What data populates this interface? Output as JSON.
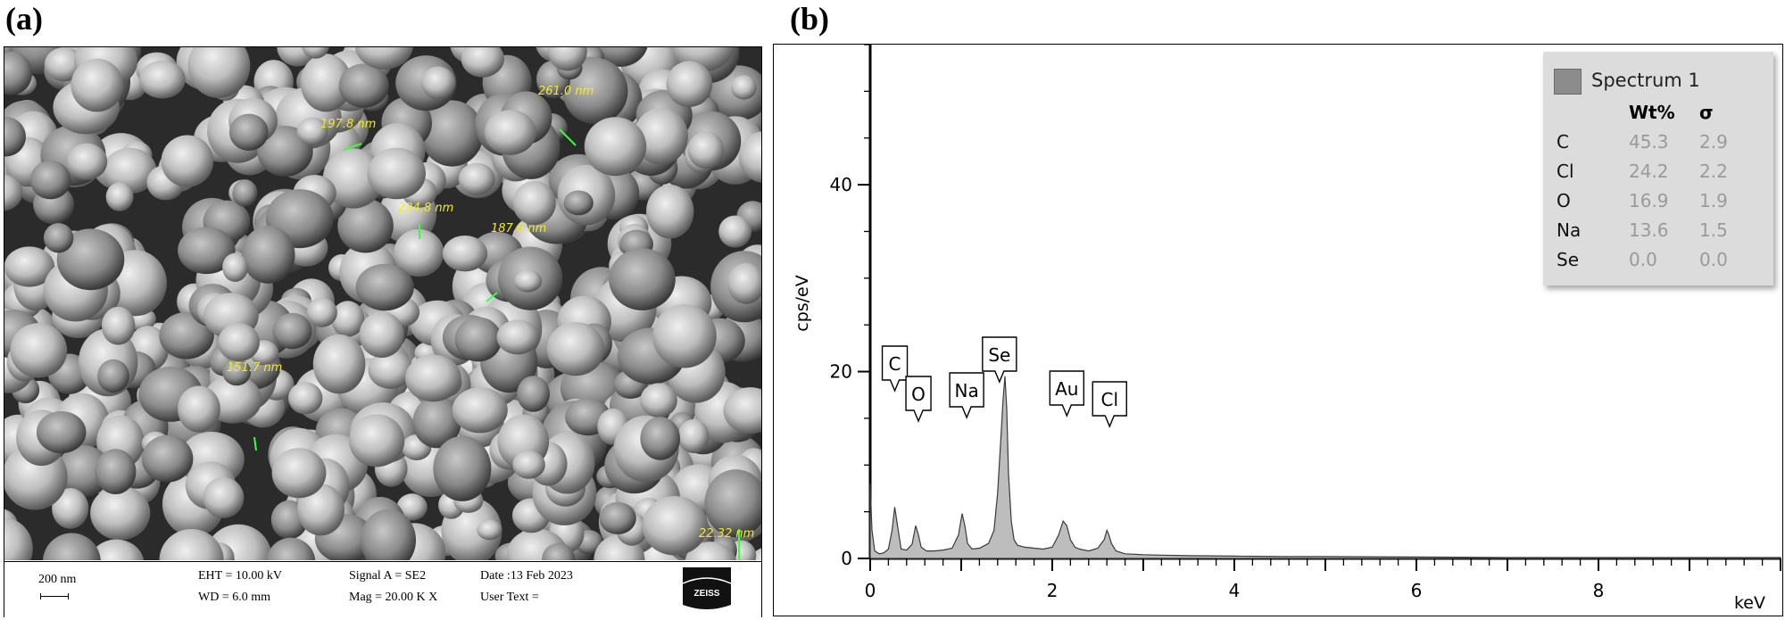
{
  "panels": {
    "a": {
      "label": "(a)"
    },
    "b": {
      "label": "(b)"
    }
  },
  "sem": {
    "measurements": [
      "197.8 nm",
      "261.0 nm",
      "234.8 nm",
      "187.6 nm",
      "151.7 nm",
      "22.32 nm"
    ],
    "info": {
      "scale": "200 nm",
      "eht": "EHT = 10.00 kV",
      "wd": "WD =  6.0 mm",
      "signal": "Signal A = SE2",
      "mag": "Mag =   20.00 K X",
      "date": "Date :13 Feb 2023",
      "user_text": "User Text ="
    },
    "logo": "ZEISS"
  },
  "chart_data": {
    "type": "area",
    "title": "",
    "xlabel": "keV",
    "ylabel": "cps/eV",
    "xlim": [
      0,
      10
    ],
    "ylim": [
      0,
      55
    ],
    "x_ticks": [
      0,
      2,
      4,
      6,
      8
    ],
    "y_ticks": [
      0,
      20,
      40
    ],
    "legend": {
      "position": "top-right",
      "name": "Spectrum 1"
    },
    "series": [
      {
        "name": "Spectrum 1",
        "color": "#bdbdbd",
        "x": [
          0.0,
          0.02,
          0.05,
          0.1,
          0.15,
          0.2,
          0.24,
          0.27,
          0.3,
          0.34,
          0.4,
          0.46,
          0.5,
          0.53,
          0.56,
          0.62,
          0.7,
          0.8,
          0.9,
          0.97,
          1.01,
          1.04,
          1.07,
          1.12,
          1.2,
          1.3,
          1.36,
          1.4,
          1.43,
          1.46,
          1.48,
          1.5,
          1.52,
          1.55,
          1.58,
          1.62,
          1.7,
          1.8,
          1.9,
          2.0,
          2.07,
          2.12,
          2.16,
          2.2,
          2.25,
          2.3,
          2.4,
          2.5,
          2.57,
          2.6,
          2.62,
          2.65,
          2.7,
          2.8,
          3.0,
          3.2,
          3.5,
          4.0,
          4.5,
          5.0,
          6.0,
          7.0,
          8.0,
          9.0,
          10.0
        ],
        "y": [
          8.0,
          3.0,
          0.8,
          0.5,
          0.6,
          1.0,
          3.0,
          5.5,
          3.5,
          1.0,
          0.9,
          1.5,
          3.5,
          2.5,
          1.2,
          0.8,
          0.8,
          0.9,
          1.1,
          2.5,
          4.8,
          3.5,
          1.6,
          1.0,
          1.1,
          1.6,
          3.0,
          7.0,
          12.0,
          17.0,
          19.5,
          16.0,
          9.0,
          4.0,
          2.0,
          1.4,
          1.2,
          1.1,
          1.0,
          1.2,
          2.5,
          4.0,
          3.5,
          2.0,
          1.2,
          1.0,
          0.8,
          1.1,
          2.0,
          3.0,
          2.6,
          1.6,
          0.8,
          0.5,
          0.4,
          0.35,
          0.3,
          0.25,
          0.2,
          0.2,
          0.15,
          0.1,
          0.1,
          0.1,
          0.1
        ]
      }
    ],
    "peak_labels": [
      {
        "text": "C",
        "x": 0.27,
        "y": 5.5
      },
      {
        "text": "O",
        "x": 0.53,
        "y": 3.5
      },
      {
        "text": "Na",
        "x": 1.06,
        "y": 4.8
      },
      {
        "text": "Se",
        "x": 1.42,
        "y": 7.0
      },
      {
        "text": "Au",
        "x": 2.16,
        "y": 4.0
      },
      {
        "text": "Cl",
        "x": 2.63,
        "y": 3.0
      }
    ],
    "table": {
      "headers": [
        "Wt%",
        "σ"
      ],
      "rows": [
        {
          "element": "C",
          "wt": "45.3",
          "sigma": "2.9"
        },
        {
          "element": "Cl",
          "wt": "24.2",
          "sigma": "2.2"
        },
        {
          "element": "O",
          "wt": "16.9",
          "sigma": "1.9"
        },
        {
          "element": "Na",
          "wt": "13.6",
          "sigma": "1.5"
        },
        {
          "element": "Se",
          "wt": "0.0",
          "sigma": "0.0"
        }
      ]
    }
  }
}
